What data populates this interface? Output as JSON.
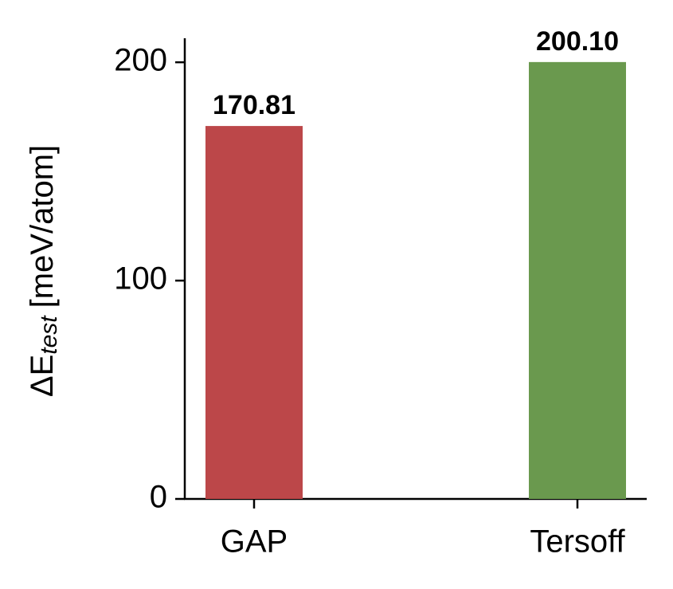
{
  "chart_data": {
    "type": "bar",
    "y_label": {
      "main": "ΔE",
      "sub": "test",
      "unit": "[meV/atom]"
    },
    "categories": [
      "GAP",
      "Tersoff"
    ],
    "values": [
      170.81,
      200.1
    ],
    "value_labels": [
      "170.81",
      "200.10"
    ],
    "colors": [
      "#bc4749",
      "#6a994e"
    ],
    "ylim": [
      0,
      211
    ],
    "yticks": [
      0,
      100,
      200
    ],
    "grid": false
  }
}
